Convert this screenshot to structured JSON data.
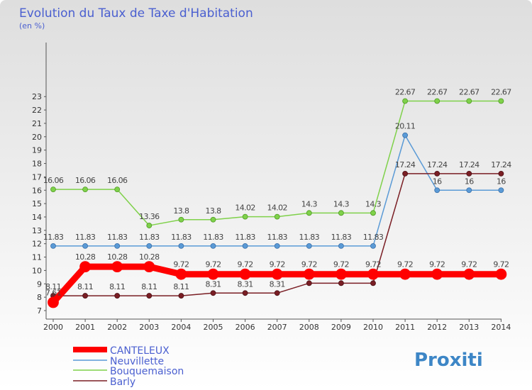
{
  "chart_data": {
    "type": "line",
    "title": "Evolution du Taux de Taxe d'Habitation",
    "subtitle": "(en %)",
    "x": [
      "2000",
      "2001",
      "2002",
      "2003",
      "2004",
      "2005",
      "2006",
      "2007",
      "2008",
      "2009",
      "2010",
      "2011",
      "2012",
      "2013",
      "2014"
    ],
    "ylim": [
      7,
      23
    ],
    "yticks": [
      7,
      8,
      9,
      10,
      11,
      12,
      13,
      14,
      15,
      16,
      17,
      18,
      19,
      20,
      21,
      22,
      23
    ],
    "grid": false,
    "legend_position": "bottom-left",
    "series": [
      {
        "name": "CANTELEUX",
        "color": "#ff0000",
        "values": [
          7.61,
          10.28,
          10.28,
          10.28,
          9.72,
          9.72,
          9.72,
          9.72,
          9.72,
          9.72,
          9.72,
          9.72,
          9.72,
          9.72,
          9.72
        ],
        "labels": [
          "7.61",
          "10.28",
          "10.28",
          "10.28",
          "9.72",
          "9.72",
          "9.72",
          "9.72",
          "9.72",
          "9.72",
          "9.72",
          "9.72",
          "9.72",
          "9.72",
          "9.72"
        ]
      },
      {
        "name": "Neuvillette",
        "color": "#5a9ad6",
        "values": [
          11.83,
          11.83,
          11.83,
          11.83,
          11.83,
          11.83,
          11.83,
          11.83,
          11.83,
          11.83,
          11.83,
          20.11,
          16,
          16,
          16
        ],
        "labels": [
          "11.83",
          "11.83",
          "11.83",
          "11.83",
          "11.83",
          "11.83",
          "11.83",
          "11.83",
          "11.83",
          "11.83",
          "11.83",
          "20.11",
          "16",
          "16",
          "16"
        ]
      },
      {
        "name": "Bouquemaison",
        "color": "#7fd14a",
        "values": [
          16.06,
          16.06,
          16.06,
          13.36,
          13.8,
          13.8,
          14.02,
          14.02,
          14.3,
          14.3,
          14.3,
          22.67,
          22.67,
          22.67,
          22.67
        ],
        "labels": [
          "16.06",
          "16.06",
          "16.06",
          "13.36",
          "13.8",
          "13.8",
          "14.02",
          "14.02",
          "14.3",
          "14.3",
          "14.3",
          "22.67",
          "22.67",
          "22.67",
          "22.67"
        ]
      },
      {
        "name": "Barly",
        "color": "#7a1e24",
        "values": [
          8.11,
          8.11,
          8.11,
          8.11,
          8.11,
          8.31,
          8.31,
          8.31,
          9.05,
          9.05,
          9.05,
          17.24,
          17.24,
          17.24,
          17.24
        ],
        "labels": [
          "8.11",
          "8.11",
          "8.11",
          "8.11",
          "8.11",
          "8.31",
          "8.31",
          "8.31",
          "9.05",
          "9.05",
          "9.05",
          "17.24",
          "17.24",
          "17.24",
          "17.24"
        ]
      }
    ]
  },
  "logo": {
    "text": "Proxiti"
  }
}
